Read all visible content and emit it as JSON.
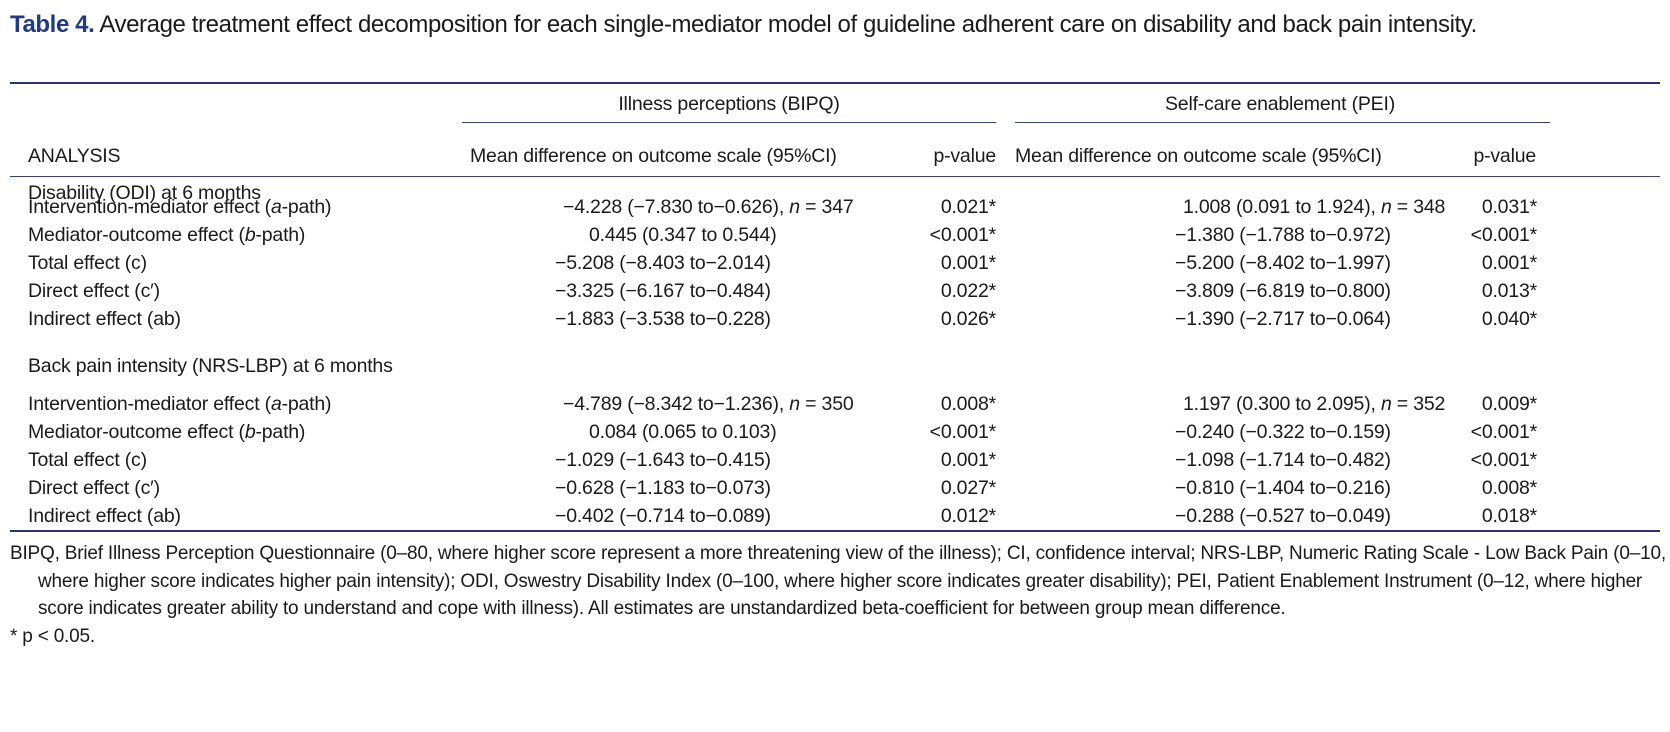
{
  "title": {
    "label": "Table 4.",
    "text": " Average treatment effect decomposition for each single-mediator model of guideline adherent care on disability and back pain intensity."
  },
  "header": {
    "group1": "Illness perceptions (BIPQ)",
    "group2": "Self-care enablement (PEI)",
    "col_analysis": "ANALYSIS",
    "col_mean1": "Mean difference on outcome scale (95%CI)",
    "col_p1": "p-value",
    "col_mean2": "Mean difference on outcome scale (95%CI)",
    "col_p2": "p-value"
  },
  "sections": [
    {
      "label": "Disability (ODI) at 6 months",
      "rows": [
        {
          "pre": "Intervention-mediator effect (",
          "em": "a",
          "post": "-path)",
          "v1": "−4.228 (−7.830 to−0.626), ",
          "n1": "n",
          "n1v": " = 347",
          "p1": "0.021*",
          "v2": "1.008 (0.091 to 1.924), ",
          "n2": "n",
          "n2v": " = 348",
          "p2": "0.031*"
        },
        {
          "pre": "Mediator-outcome effect (",
          "em": "b",
          "post": "-path)",
          "v1": "0.445 (0.347 to 0.544)",
          "p1": "<0.001*",
          "v2": "−1.380 (−1.788 to−0.972)",
          "p2": "<0.001*"
        },
        {
          "pre": "Total effect (c)",
          "v1": "−5.208 (−8.403 to−2.014)",
          "p1": "0.001*",
          "v2": "−5.200 (−8.402 to−1.997)",
          "p2": "0.001*"
        },
        {
          "pre": "Direct effect (c′)",
          "v1": "−3.325 (−6.167 to−0.484)",
          "p1": "0.022*",
          "v2": "−3.809 (−6.819 to−0.800)",
          "p2": "0.013*"
        },
        {
          "pre": "Indirect effect (ab)",
          "v1": "−1.883 (−3.538 to−0.228)",
          "p1": "0.026*",
          "v2": "−1.390 (−2.717 to−0.064)",
          "p2": "0.040*"
        }
      ]
    },
    {
      "label": "Back pain intensity (NRS-LBP) at 6 months",
      "rows": [
        {
          "pre": "Intervention-mediator effect (",
          "em": "a",
          "post": "-path)",
          "v1": "−4.789 (−8.342 to−1.236), ",
          "n1": "n",
          "n1v": " = 350",
          "p1": "0.008*",
          "v2": "1.197 (0.300 to 2.095), ",
          "n2": "n",
          "n2v": " = 352",
          "p2": "0.009*"
        },
        {
          "pre": "Mediator-outcome effect (",
          "em": "b",
          "post": "-path)",
          "v1": "0.084 (0.065 to 0.103)",
          "p1": "<0.001*",
          "v2": "−0.240 (−0.322 to−0.159)",
          "p2": "<0.001*"
        },
        {
          "pre": "Total effect (c)",
          "v1": "−1.029 (−1.643 to−0.415)",
          "p1": "0.001*",
          "v2": "−1.098 (−1.714 to−0.482)",
          "p2": "<0.001*"
        },
        {
          "pre": "Direct effect (c′)",
          "v1": "−0.628 (−1.183 to−0.073)",
          "p1": "0.027*",
          "v2": "−0.810 (−1.404 to−0.216)",
          "p2": "0.008*"
        },
        {
          "pre": "Indirect effect (ab)",
          "v1": "−0.402 (−0.714 to−0.089)",
          "p1": "0.012*",
          "v2": "−0.288 (−0.527 to−0.049)",
          "p2": "0.018*"
        }
      ]
    }
  ],
  "footnotes": {
    "abbreviations": "BIPQ, Brief Illness Perception Questionnaire (0–80, where higher score represent a more threatening view of the illness); CI, confidence interval; NRS-LBP, Numeric Rating Scale - Low Back Pain (0–10, where higher score indicates higher pain intensity); ODI, Oswestry Disability Index (0–100, where higher score indicates greater disability); PEI, Patient Enablement Instrument (0–12, where higher score indicates greater ability to understand and cope with illness). All estimates are unstandardized beta-coefficient for between group mean difference.",
    "significance": "* p < 0.05."
  },
  "colors": {
    "title_label": "#1f3a8a",
    "rules": "#2a3570"
  }
}
